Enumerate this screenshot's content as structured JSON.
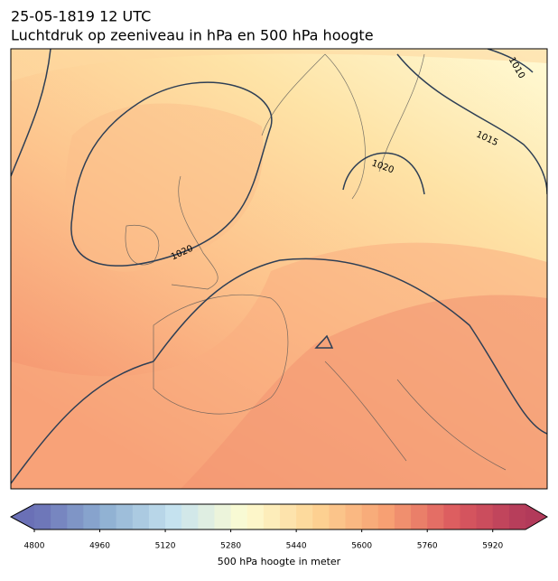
{
  "title": "25-05-1819 12 UTC",
  "subtitle": "Luchtdruk op zeeniveau in hPa en 500 hPa hoogte",
  "map": {
    "contour_labels": [
      "1010",
      "1015",
      "1020",
      "1020"
    ]
  },
  "colorbar": {
    "label": "500 hPa hoogte in meter",
    "xlim": [
      4800,
      6000
    ],
    "xticks": [
      4800,
      4960,
      5120,
      5280,
      5440,
      5600,
      5760,
      5920
    ],
    "colors": [
      "#6a70b6",
      "#8eafd2",
      "#c6e3ef",
      "#fdfcd2",
      "#fdd494",
      "#f7a173",
      "#dc5a5f",
      "#b23a5a"
    ],
    "extend": "both"
  }
}
